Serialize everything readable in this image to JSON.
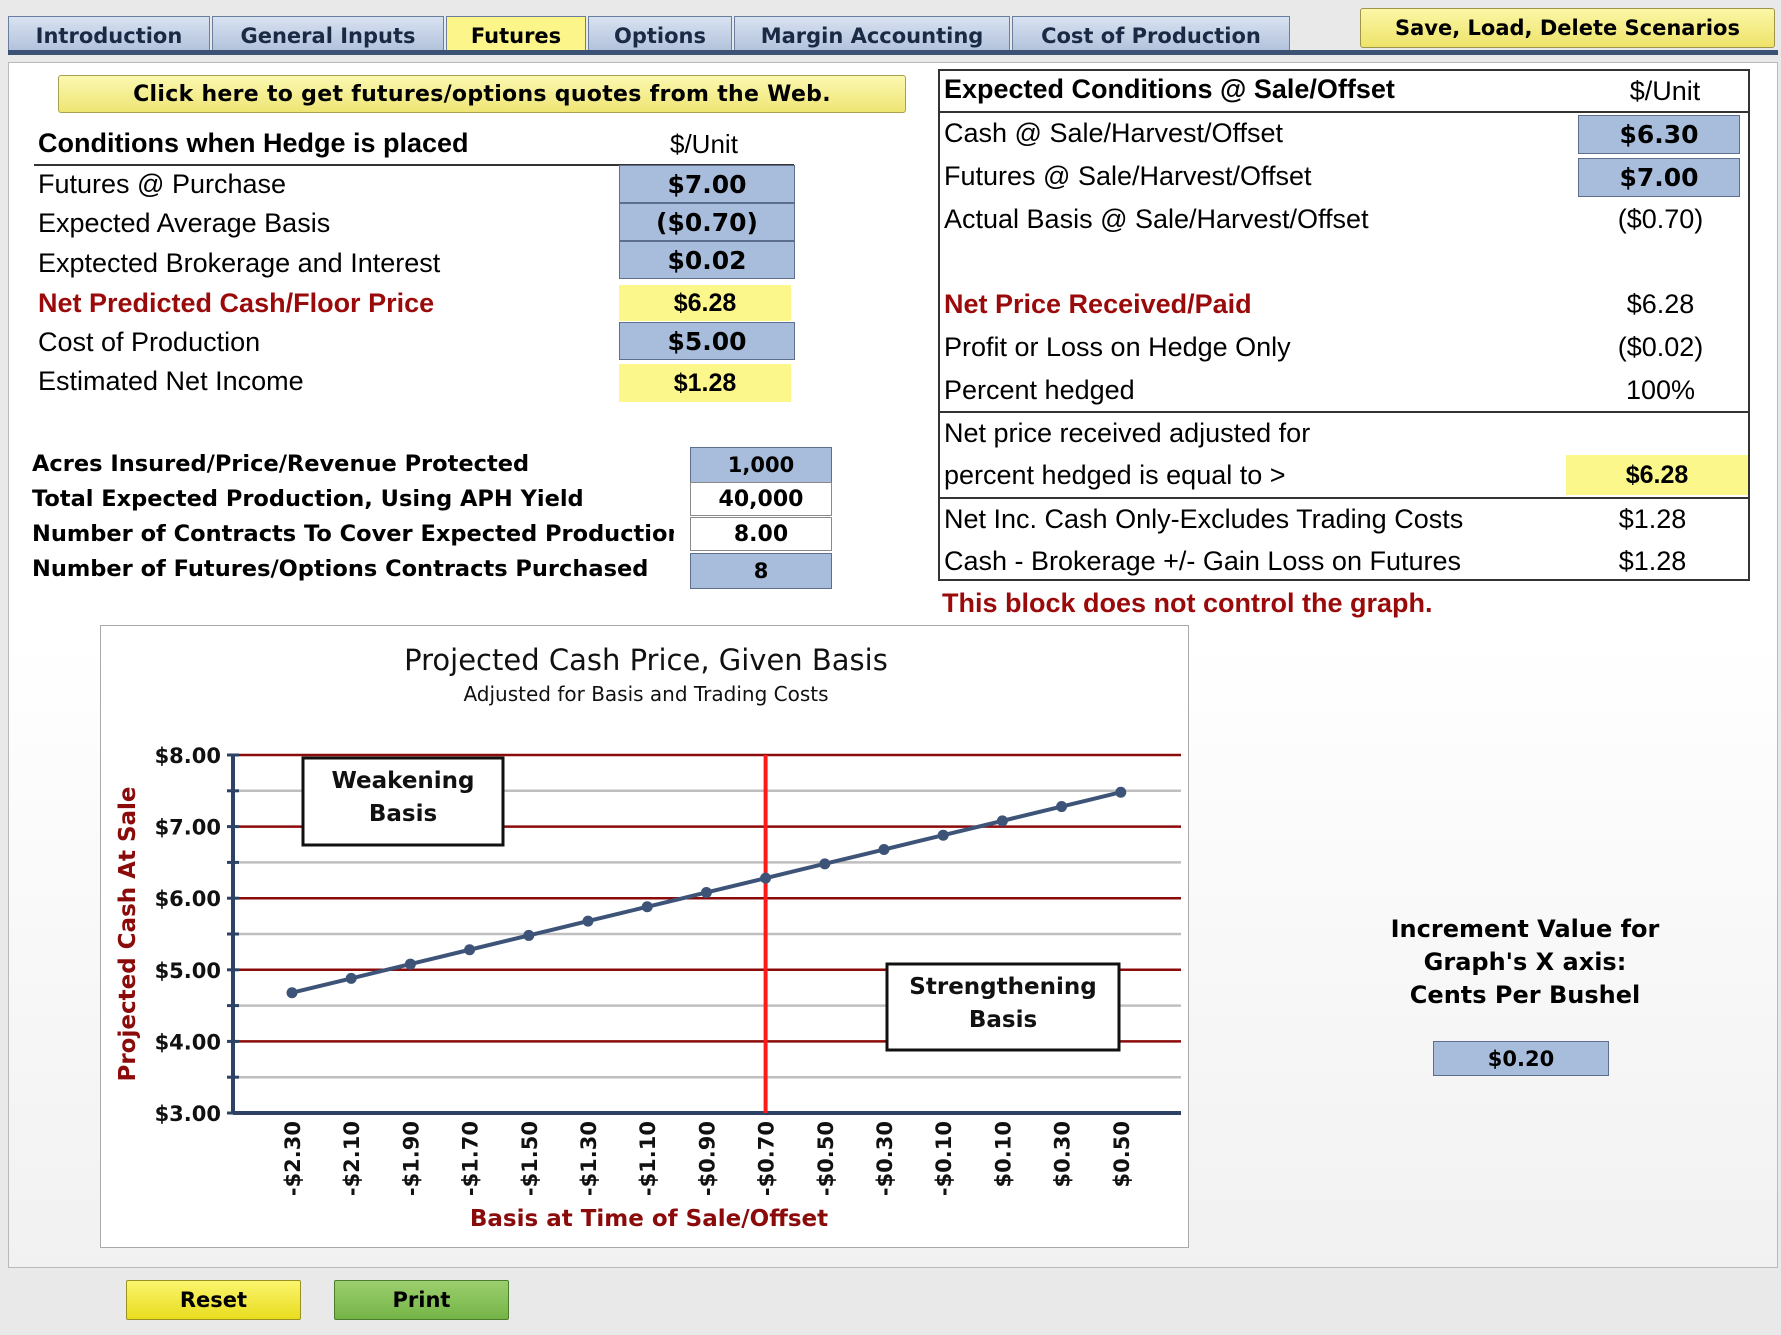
{
  "tabs": [
    {
      "label": "Introduction",
      "active": false
    },
    {
      "label": "General Inputs",
      "active": false
    },
    {
      "label": "Futures",
      "active": true
    },
    {
      "label": "Options",
      "active": false
    },
    {
      "label": "Margin Accounting",
      "active": false
    },
    {
      "label": "Cost of Production",
      "active": false
    }
  ],
  "save_scenarios_label": "Save, Load, Delete Scenarios",
  "web_quotes_label": "Click here to get futures/options quotes from the Web.",
  "hedge": {
    "heading": "Conditions when Hedge is placed",
    "unit": "$/Unit",
    "rows": [
      {
        "label": "Futures @ Purchase",
        "value": "$7.00"
      },
      {
        "label": "Expected Average Basis",
        "value": "($0.70)"
      },
      {
        "label": "Exptected Brokerage and Interest",
        "value": "$0.02"
      },
      {
        "label": "Net Predicted Cash/Floor Price",
        "value": "$6.28"
      },
      {
        "label": "Cost of Production",
        "value": "$5.00"
      },
      {
        "label": "Estimated Net Income",
        "value": "$1.28"
      }
    ]
  },
  "insurance": {
    "rows": [
      {
        "label": "Acres Insured/Price/Revenue Protected",
        "value": "1,000"
      },
      {
        "label": "Total Expected Production, Using APH Yield",
        "value": "40,000"
      },
      {
        "label": "Number of Contracts To Cover Expected Production",
        "value": "8.00"
      },
      {
        "label": "Number of  Futures/Options Contracts Purchased",
        "value": "8"
      }
    ]
  },
  "expected": {
    "heading": "Expected Conditions @ Sale/Offset",
    "unit": "$/Unit",
    "cash_label": "Cash @ Sale/Harvest/Offset",
    "cash_value": "$6.30",
    "futures_label": "Futures @ Sale/Harvest/Offset",
    "futures_value": "$7.00",
    "basis_label": "Actual Basis @ Sale/Harvest/Offset",
    "basis_value": "($0.70)",
    "net_price_label": "Net Price Received/Paid",
    "net_price_value": "$6.28",
    "profit_label": "Profit or Loss on Hedge Only",
    "profit_value": "($0.02)",
    "percent_label": "Percent hedged",
    "percent_value": "100%",
    "adjusted_line1": "Net price received adjusted for",
    "adjusted_line2": "percent hedged is equal to >",
    "adjusted_value": "$6.28",
    "netinc_label": "Net Inc. Cash Only-Excludes Trading Costs",
    "netinc_value": "$1.28",
    "cash_brok_label": "Cash - Brokerage +/- Gain Loss on Futures",
    "cash_brok_value": "$1.28"
  },
  "note": "This block does not control the graph.",
  "increment": {
    "label_lines": [
      "Increment Value for",
      "Graph's X axis:",
      "Cents Per Bushel"
    ],
    "value": "$0.20"
  },
  "buttons": {
    "reset": "Reset",
    "print": "Print"
  },
  "colors": {
    "accent_red": "#9b0a0a",
    "input_blue": "#a8bddc",
    "highlight_yellow": "#fbf78a",
    "series_line": "#3d5478",
    "marker_line": "#ff1a1a"
  },
  "chart_data": {
    "type": "line",
    "title": "Projected Cash Price, Given Basis",
    "subtitle": "Adjusted for Basis and Trading Costs",
    "xlabel": "Basis at Time of Sale/Offset",
    "ylabel": "Projected Cash At Sale",
    "x": [
      -2.3,
      -2.2,
      -2.1,
      -2.0,
      -1.9,
      -1.8,
      -1.7,
      -1.6,
      -1.5,
      -1.4,
      -1.3,
      -1.2,
      -1.1,
      -1.0,
      -0.9,
      -0.8,
      -0.7,
      -0.6,
      -0.5,
      -0.4,
      -0.3,
      -0.2,
      -0.1,
      0.0,
      0.1,
      0.2,
      0.3,
      0.4,
      0.5
    ],
    "x_tick_labels": [
      "-$2.30",
      "-$2.10",
      "-$1.90",
      "-$1.70",
      "-$1.50",
      "-$1.30",
      "-$1.10",
      "-$0.90",
      "-$0.70",
      "-$0.50",
      "-$0.30",
      "-$0.10",
      "$0.10",
      "$0.30",
      "$0.50"
    ],
    "x_tick_values": [
      -2.3,
      -2.1,
      -1.9,
      -1.7,
      -1.5,
      -1.3,
      -1.1,
      -0.9,
      -0.7,
      -0.5,
      -0.3,
      -0.1,
      0.1,
      0.3,
      0.5
    ],
    "series": [
      {
        "values": [
          4.68,
          4.78,
          4.88,
          4.98,
          5.08,
          5.18,
          5.28,
          5.38,
          5.48,
          5.58,
          5.68,
          5.78,
          5.88,
          5.98,
          6.08,
          6.18,
          6.28,
          6.38,
          6.48,
          6.58,
          6.68,
          6.78,
          6.88,
          6.98,
          7.08,
          7.18,
          7.28,
          7.38,
          7.48
        ]
      }
    ],
    "y_tick_labels": [
      "$3.00",
      "$4.00",
      "$5.00",
      "$6.00",
      "$7.00",
      "$8.00"
    ],
    "ylim": [
      3.0,
      8.0
    ],
    "major_gridlines": [
      4.0,
      5.0,
      6.0,
      7.0,
      8.0
    ],
    "minor_gridlines": [
      3.5,
      4.5,
      5.5,
      6.5,
      7.5
    ],
    "vertical_marker_x": -0.7,
    "annotations": [
      {
        "text": "Weakening Basis",
        "lines": [
          "Weakening",
          "Basis"
        ]
      },
      {
        "text": "Strengthening Basis",
        "lines": [
          "Strengthening",
          "Basis"
        ]
      }
    ],
    "grid": true
  }
}
